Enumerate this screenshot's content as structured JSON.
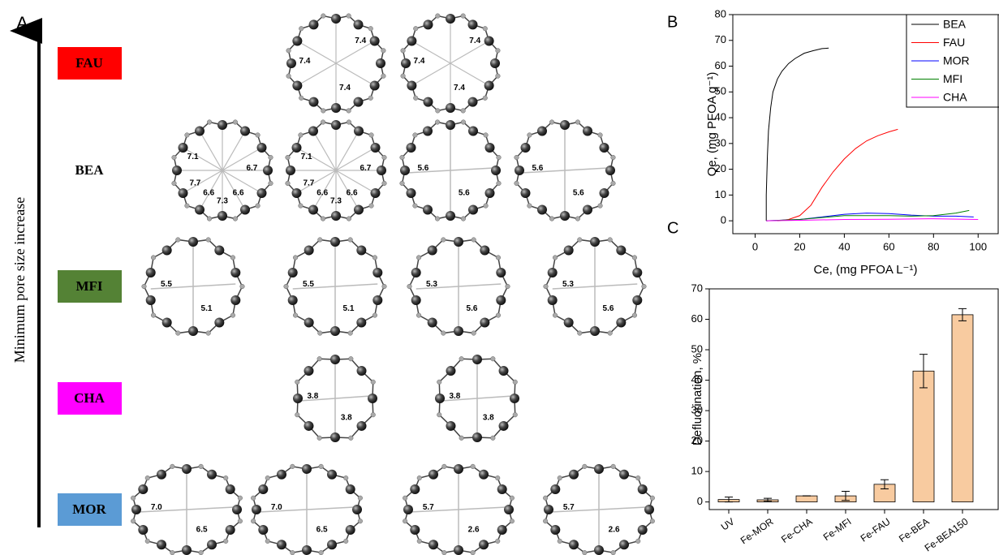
{
  "panel_labels": {
    "a": "A",
    "b": "B",
    "c": "C"
  },
  "pore_diagram": {
    "axis_label": "Minimum pore size increase",
    "rows": [
      {
        "name": "FAU",
        "color": "#ff0000",
        "rings": [
          [
            "7.4",
            "7.4",
            "7.4"
          ],
          [
            "7.4",
            "7.4",
            "7.4"
          ]
        ]
      },
      {
        "name": "BEA",
        "color": "#ffffff",
        "rings": [
          [
            "7.1",
            "6.7",
            "7.7",
            "6.6",
            "6.6",
            "7.3"
          ],
          [
            "7.1",
            "6.7",
            "7.7",
            "6.6",
            "6.6",
            "7.3"
          ],
          [
            "5.6",
            "5.6"
          ],
          [
            "5.6",
            "5.6"
          ]
        ]
      },
      {
        "name": "MFI",
        "color": "#548235",
        "rings": [
          [
            "5.5",
            "5.1"
          ],
          [
            "5.5",
            "5.1"
          ],
          [
            "5.3",
            "5.6"
          ],
          [
            "5.3",
            "5.6"
          ]
        ]
      },
      {
        "name": "CHA",
        "color": "#ff00ff",
        "rings": [
          [
            "3.8",
            "3.8"
          ],
          [
            "3.8",
            "3.8"
          ]
        ]
      },
      {
        "name": "MOR",
        "color": "#5b9bd5",
        "rings": [
          [
            "7.0",
            "6.5"
          ],
          [
            "7.0",
            "6.5"
          ],
          [
            "5.7",
            "2.6"
          ],
          [
            "5.7",
            "2.6"
          ]
        ]
      }
    ]
  },
  "chart_data": [
    {
      "type": "line",
      "xlabel": "Ce, (mg PFOA L⁻¹)",
      "ylabel": "Qe, (mg PFOA g⁻¹)",
      "xlim": [
        -10,
        109
      ],
      "ylim": [
        -5,
        80
      ],
      "xticks": [
        0,
        20,
        40,
        60,
        80,
        100
      ],
      "yticks": [
        0,
        10,
        20,
        30,
        40,
        50,
        60,
        70,
        80
      ],
      "legend": "upper right",
      "grid": false,
      "series": [
        {
          "name": "BEA",
          "color": "#000000",
          "x": [
            5,
            5,
            5.5,
            6,
            7,
            8,
            10,
            12,
            15,
            18,
            22,
            26,
            30,
            33
          ],
          "values": [
            0,
            10,
            25,
            35,
            44,
            50,
            55,
            58,
            61,
            63,
            65,
            66,
            66.8,
            67
          ]
        },
        {
          "name": "FAU",
          "color": "#ff0000",
          "x": [
            10,
            15,
            20,
            25,
            30,
            35,
            40,
            45,
            50,
            55,
            60,
            64
          ],
          "values": [
            0,
            0.5,
            2,
            6,
            13,
            19,
            24,
            28,
            31,
            33,
            34.5,
            35.5
          ]
        },
        {
          "name": "MOR",
          "color": "#0000ff",
          "x": [
            5,
            20,
            30,
            40,
            50,
            60,
            70,
            80,
            90,
            98
          ],
          "values": [
            0,
            0.5,
            1.5,
            2.5,
            3,
            2.8,
            2.2,
            1.8,
            1.8,
            1.5
          ]
        },
        {
          "name": "MFI",
          "color": "#008000",
          "x": [
            5,
            20,
            40,
            60,
            70,
            80,
            90,
            96
          ],
          "values": [
            0,
            0.5,
            2,
            2,
            1.8,
            2,
            3,
            4
          ]
        },
        {
          "name": "CHA",
          "color": "#ff00ff",
          "x": [
            5,
            20,
            40,
            60,
            80,
            100
          ],
          "values": [
            0,
            0.2,
            0.5,
            0.6,
            0.8,
            0.5
          ]
        }
      ]
    },
    {
      "type": "bar",
      "ylabel": "Defluorination, %",
      "ylim": [
        -2.5,
        70
      ],
      "yticks": [
        0,
        10,
        20,
        30,
        40,
        50,
        60,
        70
      ],
      "categories": [
        "UV",
        "Fe-MOR",
        "Fe-CHA",
        "Fe-MFI",
        "Fe-FAU",
        "Fe-BEA",
        "Fe-BEA150"
      ],
      "values": [
        0.8,
        0.7,
        2,
        2,
        5.8,
        43,
        61.5
      ],
      "errors": [
        0.8,
        0.5,
        0,
        1.5,
        1.5,
        5.5,
        2
      ],
      "color": "#f8cba0"
    }
  ]
}
